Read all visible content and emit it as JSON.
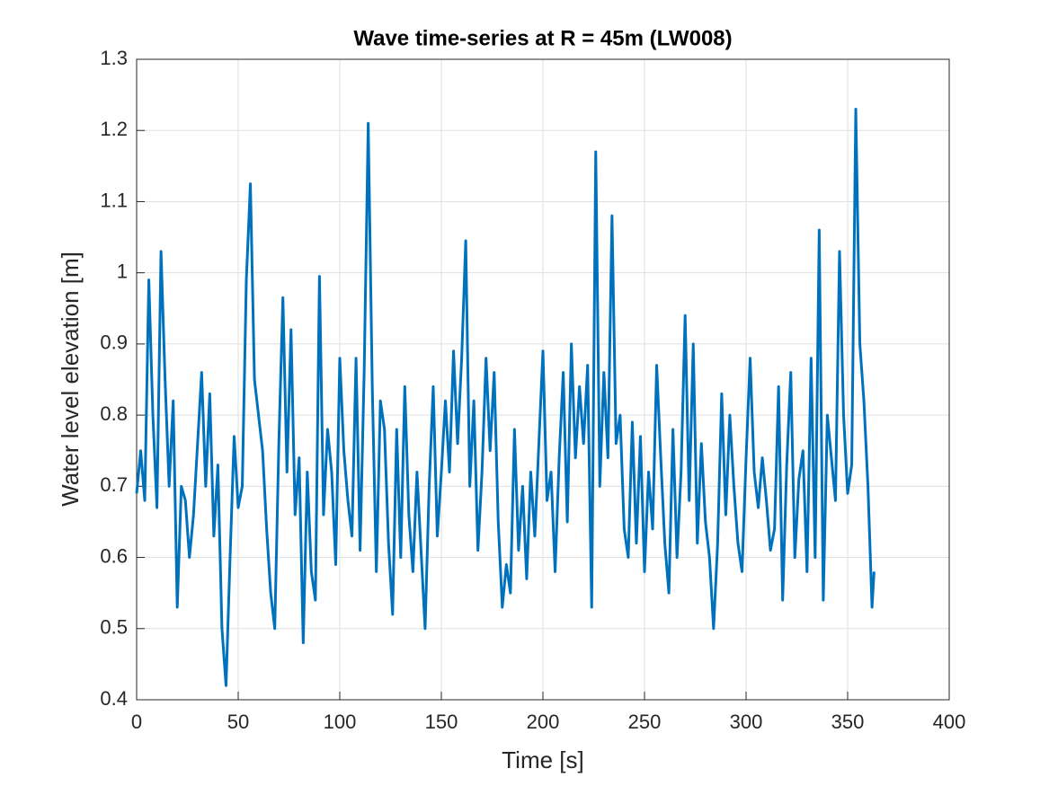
{
  "chart_data": {
    "type": "line",
    "title": "Wave time-series at R = 45m (LW008)",
    "x_label": "Time [s]",
    "y_label": "Water level elevation [m]",
    "x": [
      0,
      2,
      4,
      6,
      8,
      10,
      12,
      14,
      16,
      18,
      20,
      22,
      24,
      26,
      28,
      30,
      32,
      34,
      36,
      38,
      40,
      42,
      44,
      46,
      48,
      50,
      52,
      54,
      56,
      58,
      60,
      62,
      64,
      66,
      68,
      70,
      72,
      74,
      76,
      78,
      80,
      82,
      84,
      86,
      88,
      90,
      92,
      94,
      96,
      98,
      100,
      102,
      104,
      106,
      108,
      110,
      112,
      114,
      116,
      118,
      120,
      122,
      124,
      126,
      128,
      130,
      132,
      134,
      136,
      138,
      140,
      142,
      144,
      146,
      148,
      150,
      152,
      154,
      156,
      158,
      160,
      162,
      164,
      166,
      168,
      170,
      172,
      174,
      176,
      178,
      180,
      182,
      184,
      186,
      188,
      190,
      192,
      194,
      196,
      198,
      200,
      202,
      204,
      206,
      208,
      210,
      212,
      214,
      216,
      218,
      220,
      222,
      224,
      226,
      228,
      230,
      232,
      234,
      236,
      238,
      240,
      242,
      244,
      246,
      248,
      250,
      252,
      254,
      256,
      258,
      260,
      262,
      264,
      266,
      268,
      270,
      272,
      274,
      276,
      278,
      280,
      282,
      284,
      286,
      288,
      290,
      292,
      294,
      296,
      298,
      300,
      302,
      304,
      306,
      308,
      310,
      312,
      314,
      316,
      318,
      320,
      322,
      324,
      326,
      328,
      330,
      332,
      334,
      336,
      338,
      340,
      342,
      344,
      346,
      348,
      350,
      352,
      354,
      356,
      358,
      360,
      362,
      363
    ],
    "series": [
      {
        "name": "LW008",
        "color": "#0072bd",
        "values": [
          0.69,
          0.75,
          0.68,
          0.99,
          0.8,
          0.67,
          1.03,
          0.85,
          0.7,
          0.82,
          0.53,
          0.7,
          0.68,
          0.6,
          0.66,
          0.76,
          0.86,
          0.7,
          0.83,
          0.63,
          0.73,
          0.5,
          0.42,
          0.6,
          0.77,
          0.67,
          0.7,
          0.99,
          1.125,
          0.85,
          0.8,
          0.75,
          0.64,
          0.55,
          0.5,
          0.76,
          0.965,
          0.72,
          0.92,
          0.66,
          0.74,
          0.48,
          0.72,
          0.58,
          0.54,
          0.995,
          0.66,
          0.78,
          0.72,
          0.59,
          0.88,
          0.75,
          0.68,
          0.63,
          0.88,
          0.61,
          0.86,
          1.21,
          0.84,
          0.58,
          0.82,
          0.78,
          0.62,
          0.52,
          0.78,
          0.6,
          0.84,
          0.66,
          0.58,
          0.72,
          0.61,
          0.5,
          0.7,
          0.84,
          0.63,
          0.72,
          0.82,
          0.72,
          0.89,
          0.76,
          0.88,
          1.045,
          0.7,
          0.82,
          0.61,
          0.72,
          0.88,
          0.75,
          0.86,
          0.65,
          0.53,
          0.59,
          0.55,
          0.78,
          0.61,
          0.7,
          0.57,
          0.72,
          0.63,
          0.76,
          0.89,
          0.68,
          0.72,
          0.58,
          0.74,
          0.86,
          0.65,
          0.9,
          0.74,
          0.84,
          0.76,
          0.87,
          0.53,
          1.17,
          0.7,
          0.86,
          0.74,
          1.08,
          0.76,
          0.8,
          0.64,
          0.6,
          0.79,
          0.62,
          0.77,
          0.58,
          0.72,
          0.64,
          0.87,
          0.74,
          0.62,
          0.55,
          0.78,
          0.6,
          0.72,
          0.94,
          0.68,
          0.9,
          0.62,
          0.76,
          0.65,
          0.6,
          0.5,
          0.62,
          0.83,
          0.66,
          0.8,
          0.7,
          0.62,
          0.58,
          0.74,
          0.88,
          0.72,
          0.67,
          0.74,
          0.68,
          0.61,
          0.64,
          0.84,
          0.54,
          0.73,
          0.86,
          0.6,
          0.71,
          0.75,
          0.58,
          0.88,
          0.6,
          1.06,
          0.54,
          0.8,
          0.74,
          0.68,
          1.03,
          0.8,
          0.69,
          0.73,
          1.23,
          0.9,
          0.82,
          0.7,
          0.53,
          0.58
        ]
      }
    ],
    "xlim": [
      0,
      400
    ],
    "xticks": [
      0,
      50,
      100,
      150,
      200,
      250,
      300,
      350,
      400
    ],
    "ylim": [
      0.4,
      1.3
    ],
    "yticks": [
      0.4,
      0.5,
      0.6,
      0.7,
      0.8,
      0.9,
      1,
      1.1,
      1.2,
      1.3
    ],
    "grid": true
  }
}
